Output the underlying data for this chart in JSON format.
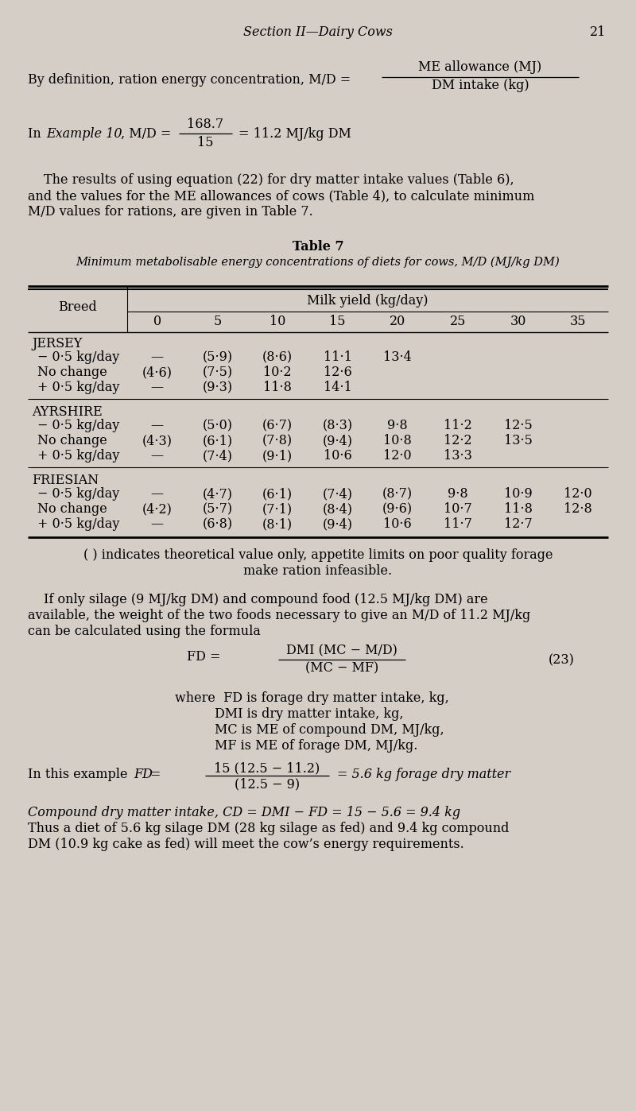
{
  "bg_color": "#d4cec6",
  "page_number": "21",
  "header": "Section II—Dairy Cows",
  "col_headers": [
    "0",
    "5",
    "10",
    "15",
    "20",
    "25",
    "30",
    "35"
  ],
  "breeds": [
    {
      "name": "JERSEY",
      "rows": [
        {
          "label": "− 0·5 kg/day",
          "values": [
            "—",
            "(5·9)",
            "(8·6)",
            "11·1",
            "13·4",
            "",
            "",
            ""
          ]
        },
        {
          "label": "No change",
          "values": [
            "(4·6)",
            "(7·5)",
            "10·2",
            "12·6",
            "",
            "",
            "",
            ""
          ]
        },
        {
          "label": "+ 0·5 kg/day",
          "values": [
            "—",
            "(9·3)",
            "11·8",
            "14·1",
            "",
            "",
            "",
            ""
          ]
        }
      ]
    },
    {
      "name": "AYRSHIRE",
      "rows": [
        {
          "label": "− 0·5 kg/day",
          "values": [
            "—",
            "(5·0)",
            "(6·7)",
            "(8·3)",
            "9·8",
            "11·2",
            "12·5",
            ""
          ]
        },
        {
          "label": "No change",
          "values": [
            "(4·3)",
            "(6·1)",
            "(7·8)",
            "(9·4)",
            "10·8",
            "12·2",
            "13·5",
            ""
          ]
        },
        {
          "label": "+ 0·5 kg/day",
          "values": [
            "—",
            "(7·4)",
            "(9·1)",
            "10·6",
            "12·0",
            "13·3",
            "",
            ""
          ]
        }
      ]
    },
    {
      "name": "FRIESIAN",
      "rows": [
        {
          "label": "− 0·5 kg/day",
          "values": [
            "—",
            "(4·7)",
            "(6·1)",
            "(7·4)",
            "(8·7)",
            "9·8",
            "10·9",
            "12·0"
          ]
        },
        {
          "label": "No change",
          "values": [
            "(4·2)",
            "(5·7)",
            "(7·1)",
            "(8·4)",
            "(9·6)",
            "10·7",
            "11·8",
            "12·8"
          ]
        },
        {
          "label": "+ 0·5 kg/day",
          "values": [
            "—",
            "(6·8)",
            "(8·1)",
            "(9·4)",
            "10·6",
            "11·7",
            "12·7",
            ""
          ]
        }
      ]
    }
  ],
  "footnote_line1": "( ) indicates theoretical value only, appetite limits on poor quality forage",
  "footnote_line2": "make ration infeasible."
}
